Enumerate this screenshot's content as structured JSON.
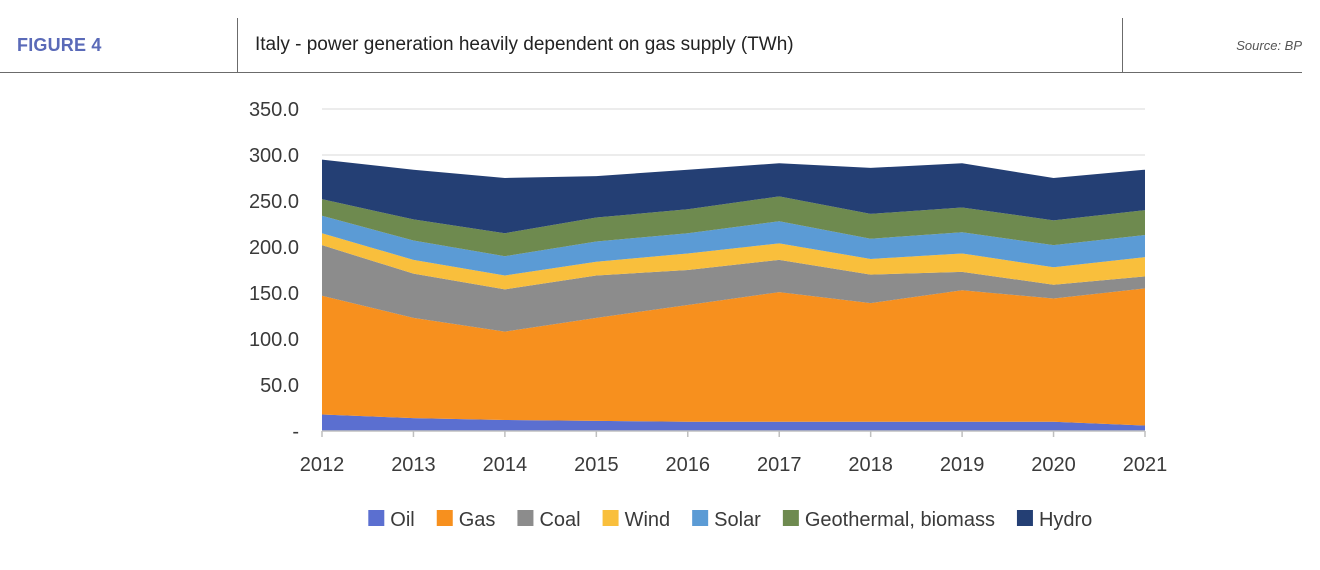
{
  "header": {
    "figure_label": "FIGURE 4",
    "title": "Italy - power generation heavily dependent on gas supply (TWh)",
    "source": "Source: BP"
  },
  "chart_data": {
    "type": "area",
    "stacked": true,
    "title": "Italy - power generation heavily dependent on gas supply (TWh)",
    "xlabel": "",
    "ylabel": "",
    "x": [
      "2012",
      "2013",
      "2014",
      "2015",
      "2016",
      "2017",
      "2018",
      "2019",
      "2020",
      "2021"
    ],
    "ylim": [
      0,
      350
    ],
    "yticks": [
      "-",
      "50.0",
      "100.0",
      "150.0",
      "200.0",
      "250.0",
      "300.0",
      "350.0"
    ],
    "ytick_values": [
      0,
      50,
      100,
      150,
      200,
      250,
      300,
      350
    ],
    "grid": true,
    "legend_position": "bottom",
    "series": [
      {
        "name": "Oil",
        "color": "#5b6fd0",
        "values": [
          18,
          14,
          12,
          11,
          10,
          10,
          10,
          10,
          10,
          6
        ]
      },
      {
        "name": "Gas",
        "color": "#f7901e",
        "values": [
          129,
          109,
          96,
          112,
          127,
          141,
          129,
          143,
          134,
          149
        ]
      },
      {
        "name": "Coal",
        "color": "#8c8c8c",
        "values": [
          55,
          48,
          46,
          46,
          38,
          35,
          31,
          20,
          15,
          13
        ]
      },
      {
        "name": "Wind",
        "color": "#f9bf3c",
        "values": [
          13,
          15,
          15,
          15,
          18,
          18,
          17,
          20,
          19,
          21
        ]
      },
      {
        "name": "Solar",
        "color": "#5b9bd5",
        "values": [
          19,
          21,
          21,
          22,
          22,
          24,
          22,
          23,
          24,
          24
        ]
      },
      {
        "name": "Geothermal, biomass",
        "color": "#6e8a4f",
        "values": [
          18,
          23,
          25,
          26,
          26,
          27,
          27,
          27,
          27,
          27
        ]
      },
      {
        "name": "Hydro",
        "color": "#243f74",
        "values": [
          43,
          54,
          60,
          45,
          43,
          36,
          50,
          48,
          46,
          44
        ]
      }
    ]
  }
}
